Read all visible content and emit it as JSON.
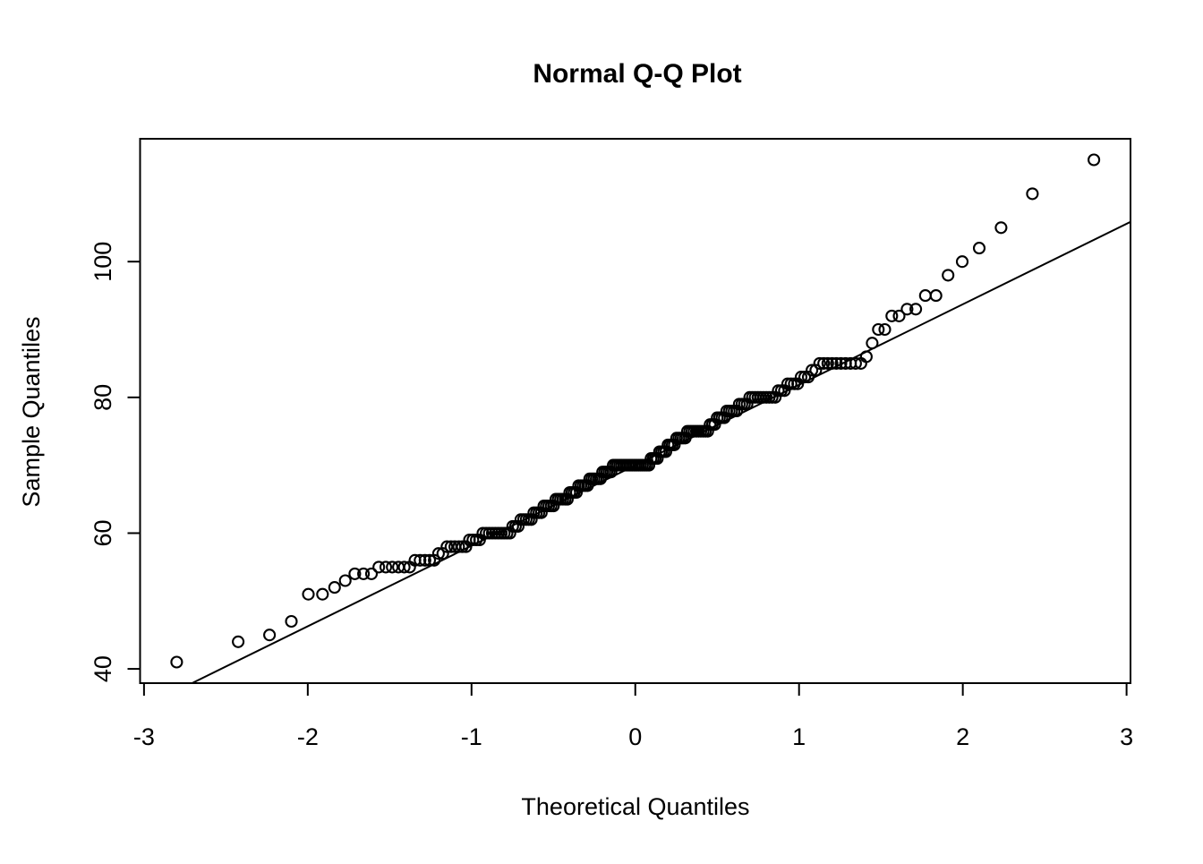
{
  "chart_data": {
    "type": "scatter",
    "subtype": "normal-qq-plot",
    "title": "Normal Q-Q Plot",
    "xlabel": "Theoretical Quantiles",
    "ylabel": "Sample Quantiles",
    "x_ticks": [
      -3,
      -2,
      -1,
      0,
      1,
      2,
      3
    ],
    "y_ticks": [
      40,
      60,
      80,
      100
    ],
    "xlim": [
      -3.024,
      3.024
    ],
    "ylim": [
      37.9,
      118.1
    ],
    "grid": false,
    "legend": "none",
    "n_points": 196,
    "theoretical_quantiles_rule": "qnorm((i - 0.5) / n) for i = 1..n (standard qqnorm positions, range -2.80 to 2.80)",
    "sample_values_runs": [
      [
        41,
        1
      ],
      [
        44,
        1
      ],
      [
        45,
        1
      ],
      [
        47,
        1
      ],
      [
        51,
        2
      ],
      [
        52,
        1
      ],
      [
        53,
        1
      ],
      [
        54,
        3
      ],
      [
        55,
        6
      ],
      [
        56,
        5
      ],
      [
        57,
        2
      ],
      [
        58,
        6
      ],
      [
        59,
        4
      ],
      [
        60,
        10
      ],
      [
        61,
        3
      ],
      [
        62,
        5
      ],
      [
        63,
        4
      ],
      [
        64,
        5
      ],
      [
        65,
        6
      ],
      [
        66,
        4
      ],
      [
        67,
        5
      ],
      [
        68,
        6
      ],
      [
        69,
        5
      ],
      [
        70,
        18
      ],
      [
        71,
        4
      ],
      [
        72,
        4
      ],
      [
        73,
        4
      ],
      [
        74,
        5
      ],
      [
        75,
        10
      ],
      [
        76,
        3
      ],
      [
        77,
        4
      ],
      [
        78,
        5
      ],
      [
        79,
        4
      ],
      [
        80,
        10
      ],
      [
        81,
        3
      ],
      [
        82,
        4
      ],
      [
        83,
        3
      ],
      [
        84,
        2
      ],
      [
        85,
        10
      ],
      [
        86,
        1
      ],
      [
        88,
        1
      ],
      [
        90,
        2
      ],
      [
        92,
        2
      ],
      [
        93,
        2
      ],
      [
        95,
        2
      ],
      [
        98,
        1
      ],
      [
        100,
        1
      ],
      [
        102,
        1
      ],
      [
        105,
        1
      ],
      [
        110,
        1
      ],
      [
        115,
        1
      ]
    ],
    "reference_line": {
      "intercept": 70,
      "slope": 11.86
    },
    "point_style": {
      "shape": "open-circle",
      "color": "#000000"
    },
    "colors": {
      "foreground": "#000000",
      "background": "#ffffff"
    }
  }
}
